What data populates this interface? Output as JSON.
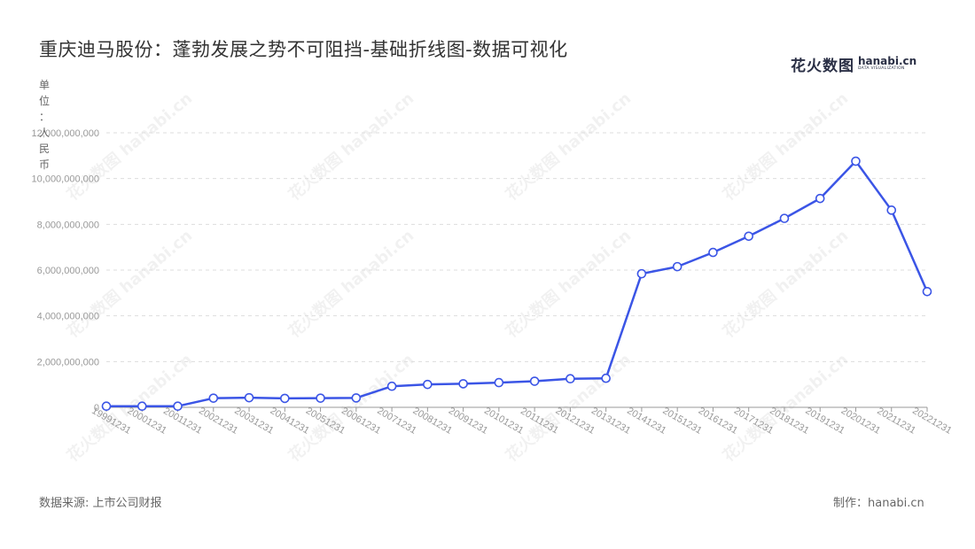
{
  "title": "重庆迪马股份：蓬勃发展之势不可阻挡-基础折线图-数据可视化",
  "logo": {
    "cn": "花火数图",
    "en": "hanabi.cn",
    "sub": "DATA VISUALIZATION"
  },
  "unit_chars": [
    "单",
    "位",
    "：",
    "人",
    "民",
    "币"
  ],
  "source": "数据来源: 上市公司财报",
  "maker": "制作：hanabi.cn",
  "colors": {
    "line": "#3b55e6",
    "grid": "#dddddd",
    "axis": "#999999",
    "text": "#999999"
  },
  "chart_data": {
    "type": "line",
    "title": "重庆迪马股份：蓬勃发展之势不可阻挡-基础折线图-数据可视化",
    "ylabel": "单位：人民币",
    "xlabel": "",
    "ylim": [
      0,
      12000000000
    ],
    "yticks": [
      0,
      2000000000,
      4000000000,
      6000000000,
      8000000000,
      10000000000,
      12000000000
    ],
    "ytick_labels": [
      "0",
      "2,000,000,000",
      "4,000,000,000",
      "6,000,000,000",
      "8,000,000,000",
      "10,000,000,000",
      "12,000,000,000"
    ],
    "grid": true,
    "categories": [
      "19991231",
      "20001231",
      "20011231",
      "20021231",
      "20031231",
      "20041231",
      "20051231",
      "20061231",
      "20071231",
      "20081231",
      "20091231",
      "20101231",
      "20111231",
      "20121231",
      "20131231",
      "20141231",
      "20151231",
      "20161231",
      "20171231",
      "20181231",
      "20191231",
      "20201231",
      "20211231",
      "20221231"
    ],
    "series": [
      {
        "values": [
          50000000,
          50000000,
          50000000,
          400000000,
          420000000,
          390000000,
          400000000,
          410000000,
          920000000,
          1000000000,
          1030000000,
          1080000000,
          1140000000,
          1250000000,
          1270000000,
          5840000000,
          6150000000,
          6770000000,
          7480000000,
          8260000000,
          9130000000,
          10760000000,
          8620000000,
          5060000000
        ]
      }
    ]
  }
}
